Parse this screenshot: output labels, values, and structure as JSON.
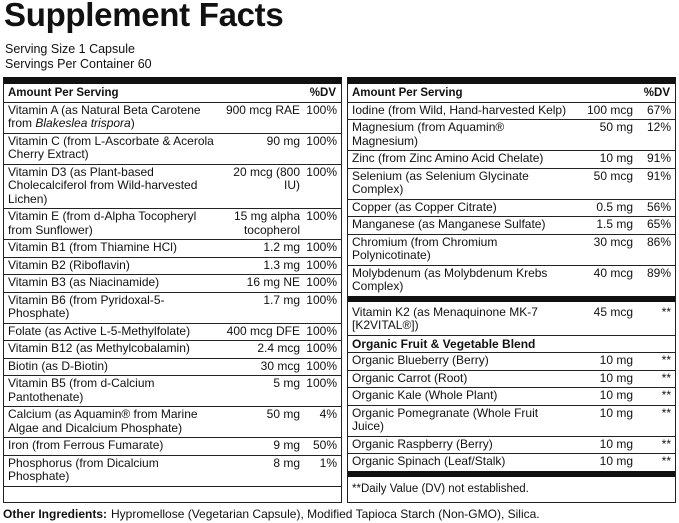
{
  "header": {
    "title": "Supplement Facts",
    "serving_size": "Serving Size 1 Capsule",
    "servings_per_container": "Servings Per Container 60"
  },
  "left": {
    "col_amount": "Amount Per Serving",
    "col_dv": "%DV",
    "rows": [
      {
        "name": "Vitamin A (as Natural Beta Carotene from",
        "name_italic": "Blakeslea trispora",
        "name_after": ")",
        "amount": "900 mcg RAE",
        "dv": "100%"
      },
      {
        "name": "Vitamin C (from L-Ascorbate & Acerola Cherry Extract)",
        "amount": "90 mg",
        "dv": "100%"
      },
      {
        "name": "Vitamin D3 (as Plant-based Cholecalciferol from Wild-harvested Lichen)",
        "amount": "20 mcg (800 IU)",
        "dv": "100%"
      },
      {
        "name": "Vitamin E (from d-Alpha Tocopheryl from Sunflower)",
        "amount": "15 mg alpha tocopherol",
        "dv": "100%"
      },
      {
        "name": "Vitamin B1 (from Thiamine HCl)",
        "amount": "1.2 mg",
        "dv": "100%"
      },
      {
        "name": "Vitamin B2 (Riboflavin)",
        "amount": "1.3 mg",
        "dv": "100%"
      },
      {
        "name": "Vitamin B3 (as Niacinamide)",
        "amount": "16 mg NE",
        "dv": "100%"
      },
      {
        "name": "Vitamin B6 (from Pyridoxal-5-Phosphate)",
        "amount": "1.7 mg",
        "dv": "100%"
      },
      {
        "name": "Folate (as Active L-5-Methylfolate)",
        "amount": "400 mcg DFE",
        "dv": "100%"
      },
      {
        "name": "Vitamin B12 (as Methylcobalamin)",
        "amount": "2.4 mcg",
        "dv": "100%"
      },
      {
        "name": "Biotin (as D-Biotin)",
        "amount": "30 mcg",
        "dv": "100%"
      },
      {
        "name": "Vitamin B5 (from d-Calcium Pantothenate)",
        "amount": "5 mg",
        "dv": "100%"
      },
      {
        "name": "Calcium (as Aquamin® from Marine Algae and Dicalcium Phosphate)",
        "amount": "50 mg",
        "dv": "4%"
      },
      {
        "name": "Iron (from Ferrous Fumarate)",
        "amount": "9 mg",
        "dv": "50%"
      },
      {
        "name": "Phosphorus (from Dicalcium Phosphate)",
        "amount": "8 mg",
        "dv": "1%"
      }
    ]
  },
  "right": {
    "col_amount": "Amount Per Serving",
    "col_dv": "%DV",
    "rows": [
      {
        "name": "Iodine (from Wild, Hand-harvested Kelp)",
        "amount": "100 mcg",
        "dv": "67%"
      },
      {
        "name": "Magnesium (from Aquamin® Magnesium)",
        "amount": "50 mg",
        "dv": "12%"
      },
      {
        "name": "Zinc (from Zinc Amino Acid Chelate)",
        "amount": "10 mg",
        "dv": "91%"
      },
      {
        "name": "Selenium (as Selenium Glycinate Complex)",
        "amount": "50 mcg",
        "dv": "91%"
      },
      {
        "name": "Copper (as Copper Citrate)",
        "amount": "0.5 mg",
        "dv": "56%"
      },
      {
        "name": "Manganese (as Manganese Sulfate)",
        "amount": "1.5 mg",
        "dv": "65%"
      },
      {
        "name": "Chromium (from Chromium Polynicotinate)",
        "amount": "30 mcg",
        "dv": "86%"
      },
      {
        "name": "Molybdenum (as Molybdenum Krebs Complex)",
        "amount": "40 mcg",
        "dv": "89%"
      }
    ],
    "k2": {
      "name": "Vitamin K2 (as Menaquinone MK-7 [K2VITAL®])",
      "amount": "45 mcg",
      "dv": "**"
    },
    "blend_title": "Organic Fruit & Vegetable Blend",
    "blend_rows": [
      {
        "name": "Organic Blueberry (Berry)",
        "amount": "10 mg",
        "dv": "**"
      },
      {
        "name": "Organic Carrot (Root)",
        "amount": "10 mg",
        "dv": "**"
      },
      {
        "name": "Organic Kale (Whole Plant)",
        "amount": "10 mg",
        "dv": "**"
      },
      {
        "name": "Organic Pomegranate (Whole Fruit Juice)",
        "amount": "10 mg",
        "dv": "**"
      },
      {
        "name": "Organic Raspberry (Berry)",
        "amount": "10 mg",
        "dv": "**"
      },
      {
        "name": "Organic Spinach (Leaf/Stalk)",
        "amount": "10 mg",
        "dv": "**"
      }
    ],
    "footnote": "**Daily Value (DV) not established."
  },
  "other_ingredients": {
    "label": "Other Ingredients:",
    "text": "Hypromellose (Vegetarian Capsule), Modified Tapioca Starch (Non-GMO), Silica."
  }
}
